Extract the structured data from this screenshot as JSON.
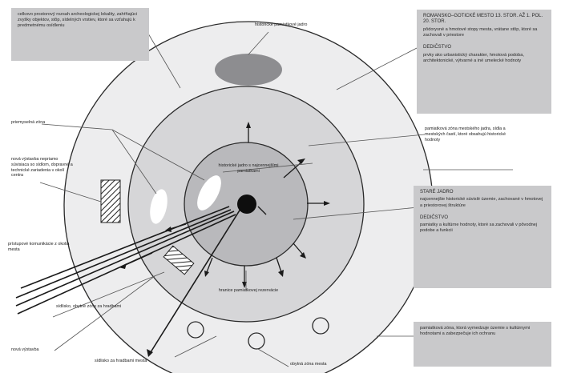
{
  "boxes": {
    "top_left": "celkovo prostorový rozsah archeologickej lokality, zahŕňajúci zvyšky objektov, stôp, sídelných vrstiev, ktoré sa vzťahujú k predmetnému osídleniu",
    "top_right_title": "ROMANSKO–GOTICKÉ MESTO 13. STOR. AŽ 1. POL. 20. STOR.",
    "top_right_desc": "pôdorysné a hmotové stopy mesta, vrátane stôp, ktoré sa zachovali v priestore",
    "top_right_sub_title": "DEDIČSTVO",
    "top_right_sub_desc": "prvky ako urbanistický charakter, hmotová podoba, architektonické, výtvarné a iné umelecké hodnoty",
    "mid_right_title": "STARÉ JADRO",
    "mid_right_desc": "najcennejšie historické súvislé územie, zachované v hmotovej a priestorovej štruktúre",
    "mid_right_sub_title": "DEDIČSTVO",
    "mid_right_sub_desc": "pamiatky a kultúrne hodnoty, ktoré sa zachovali v pôvodnej podobe a funkcii",
    "bottom_right": "pamiatková zóna, ktorá vymedzuje územie s kultúrnymi hodnotami a zabezpečuje ich ochranu"
  },
  "labels": {
    "top_center": "historické pamiatkové jadro",
    "gate": "priemyselná zóna",
    "left_mid": "nová výstavba nepriamo súvisiaca so sídlom, dopravné a technické zariadenia v okolí centra",
    "arrows_in": "prístupové komunikácie z okolia mesta",
    "bottom_left_1": "sídlisko, obytné zóny za hradbami",
    "bottom_left_2": "nová výstavba",
    "bottom_center": "sídlisko za hradbami mesta",
    "bottom_right_lbl": "obytná zóna mesta",
    "inner_center": "historické jadro s najcennejšími pamiatkami",
    "inner_bottom": "hranice pamiatkovej rezervácie",
    "right_mid": "pamiatková zóna mestského jadra, sídla a mestských častí, ktoré obsahujú historické hodnoty"
  },
  "colors": {
    "box_fill": "#c9c9cb",
    "outer_ring": "#ededee",
    "middle_ring": "#d6d6d8",
    "inner_ring": "#b9b9bc",
    "core": "#0e0e0e",
    "oval": "#8d8d90"
  }
}
